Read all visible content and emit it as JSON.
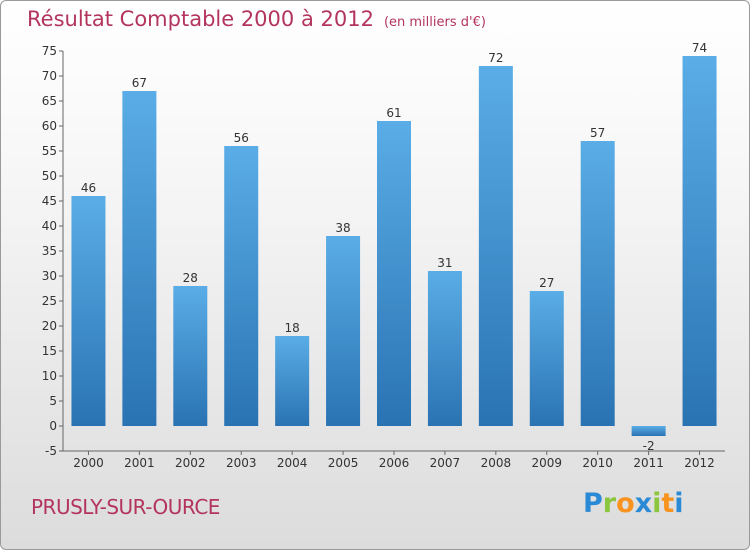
{
  "chart_data": {
    "type": "bar",
    "title": "Résultat Comptable 2000 à 2012",
    "subtitle": "(en milliers d'€)",
    "categories": [
      "2000",
      "2001",
      "2002",
      "2003",
      "2004",
      "2005",
      "2006",
      "2007",
      "2008",
      "2009",
      "2010",
      "2011",
      "2012"
    ],
    "values": [
      46,
      67,
      28,
      56,
      18,
      38,
      61,
      31,
      72,
      27,
      57,
      -2,
      74
    ],
    "ylim": [
      -5,
      75
    ],
    "yticks": [
      -5,
      0,
      5,
      10,
      15,
      20,
      25,
      30,
      35,
      40,
      45,
      50,
      55,
      60,
      65,
      70,
      75
    ],
    "grid": false,
    "colors": {
      "bar": "#4d9fdc",
      "bar_dark": "#2a73b3",
      "title": "#b3355d"
    }
  },
  "footer": {
    "commune": "PRUSLY-SUR-OURCE",
    "logo_letters": [
      {
        "ch": "P",
        "color": "#2a8ad6"
      },
      {
        "ch": "r",
        "color": "#8cc63f"
      },
      {
        "ch": "o",
        "color": "#f7931e"
      },
      {
        "ch": "x",
        "color": "#2a8ad6"
      },
      {
        "ch": "i",
        "color": "#8cc63f"
      },
      {
        "ch": "t",
        "color": "#f7931e"
      },
      {
        "ch": "i",
        "color": "#2a8ad6"
      }
    ]
  }
}
